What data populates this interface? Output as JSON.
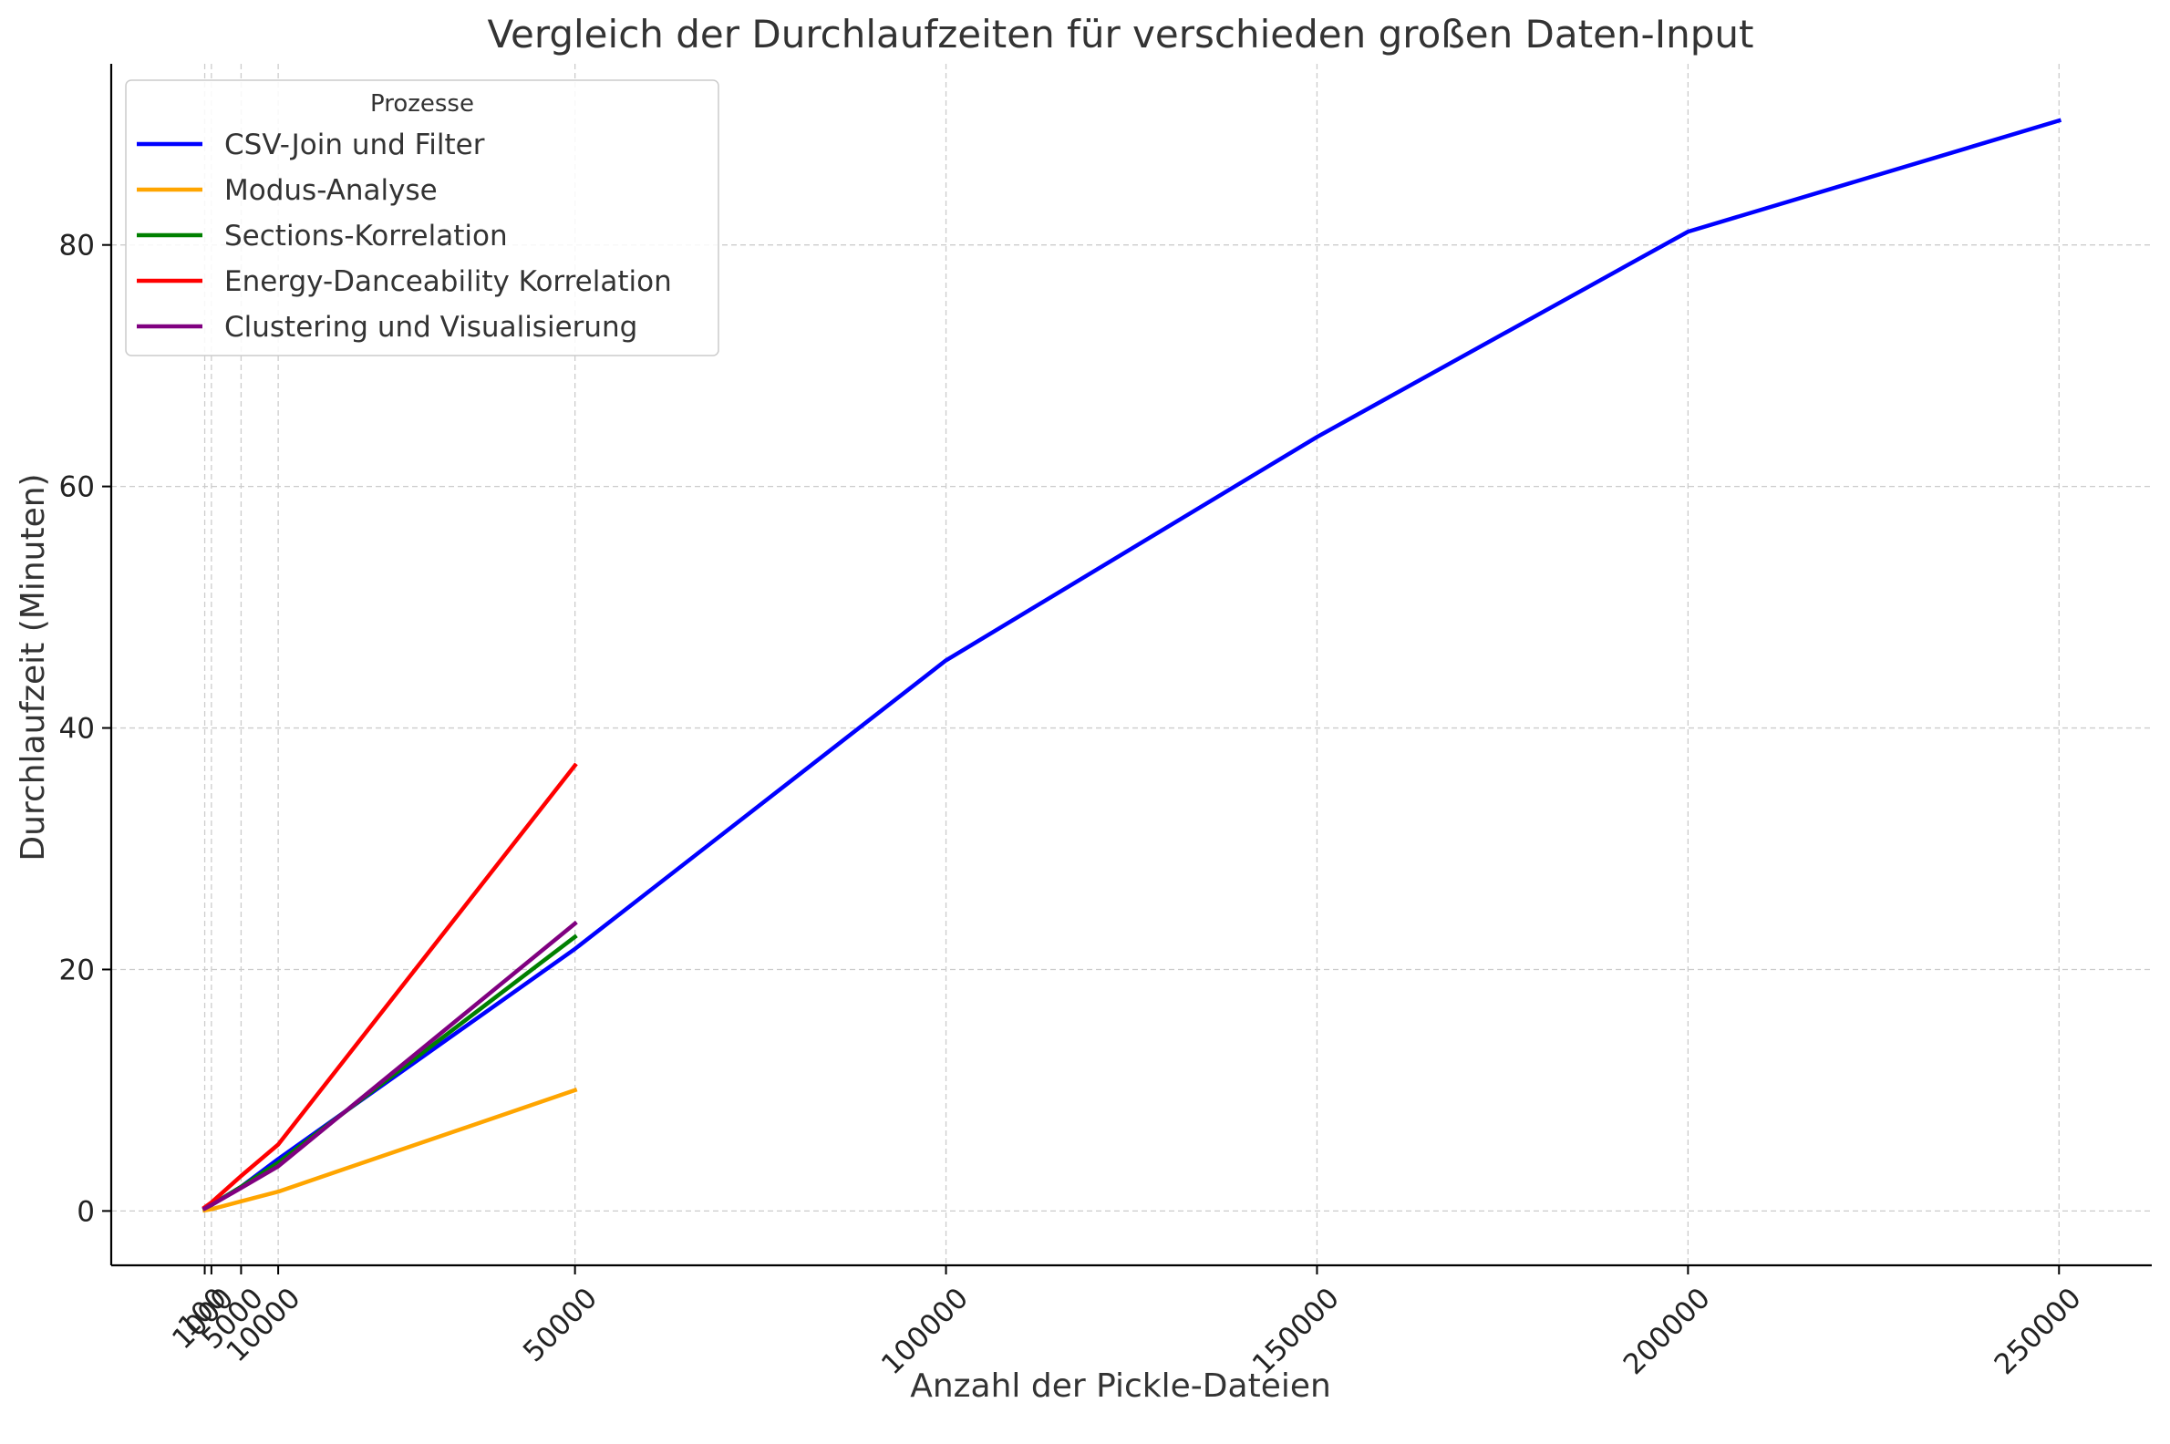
{
  "chart_data": {
    "type": "line",
    "title": "Vergleich der Durchlaufzeiten für verschieden großen Daten-Input",
    "xlabel": "Anzahl der Pickle-Dateien",
    "ylabel": "Durchlaufzeit (Minuten)",
    "xlim": [
      -12500,
      262500
    ],
    "ylim": [
      -4.5,
      95
    ],
    "x_ticks": [
      100,
      1000,
      5000,
      10000,
      50000,
      100000,
      150000,
      200000,
      250000
    ],
    "y_ticks": [
      0,
      20,
      40,
      60,
      80
    ],
    "grid": true,
    "legend": {
      "title": "Prozesse",
      "placement": "top-left"
    },
    "series": [
      {
        "name": "CSV-Join und Filter",
        "color": "#0000ff",
        "x": [
          100,
          1000,
          5000,
          10000,
          50000,
          100000,
          150000,
          200000,
          250000
        ],
        "y": [
          0.2,
          0.5,
          2.0,
          4.3,
          21.7,
          45.6,
          64.1,
          81.1,
          90.3
        ]
      },
      {
        "name": "Modus-Analyse",
        "color": "#ffa500",
        "x": [
          100,
          1000,
          5000,
          10000,
          50000
        ],
        "y": [
          0.05,
          0.15,
          0.8,
          1.6,
          10.0
        ]
      },
      {
        "name": "Sections-Korrelation",
        "color": "#008000",
        "x": [
          100,
          1000,
          5000,
          10000,
          50000
        ],
        "y": [
          0.2,
          0.5,
          2.0,
          4.0,
          22.7
        ]
      },
      {
        "name": "Energy-Danceability Korrelation",
        "color": "#ff0000",
        "x": [
          100,
          1000,
          5000,
          10000,
          50000
        ],
        "y": [
          0.3,
          0.7,
          2.9,
          5.5,
          36.9
        ]
      },
      {
        "name": "Clustering und Visualisierung",
        "color": "#800080",
        "x": [
          100,
          1000,
          5000,
          10000,
          50000
        ],
        "y": [
          0.2,
          0.5,
          1.9,
          3.7,
          23.8
        ]
      }
    ]
  }
}
